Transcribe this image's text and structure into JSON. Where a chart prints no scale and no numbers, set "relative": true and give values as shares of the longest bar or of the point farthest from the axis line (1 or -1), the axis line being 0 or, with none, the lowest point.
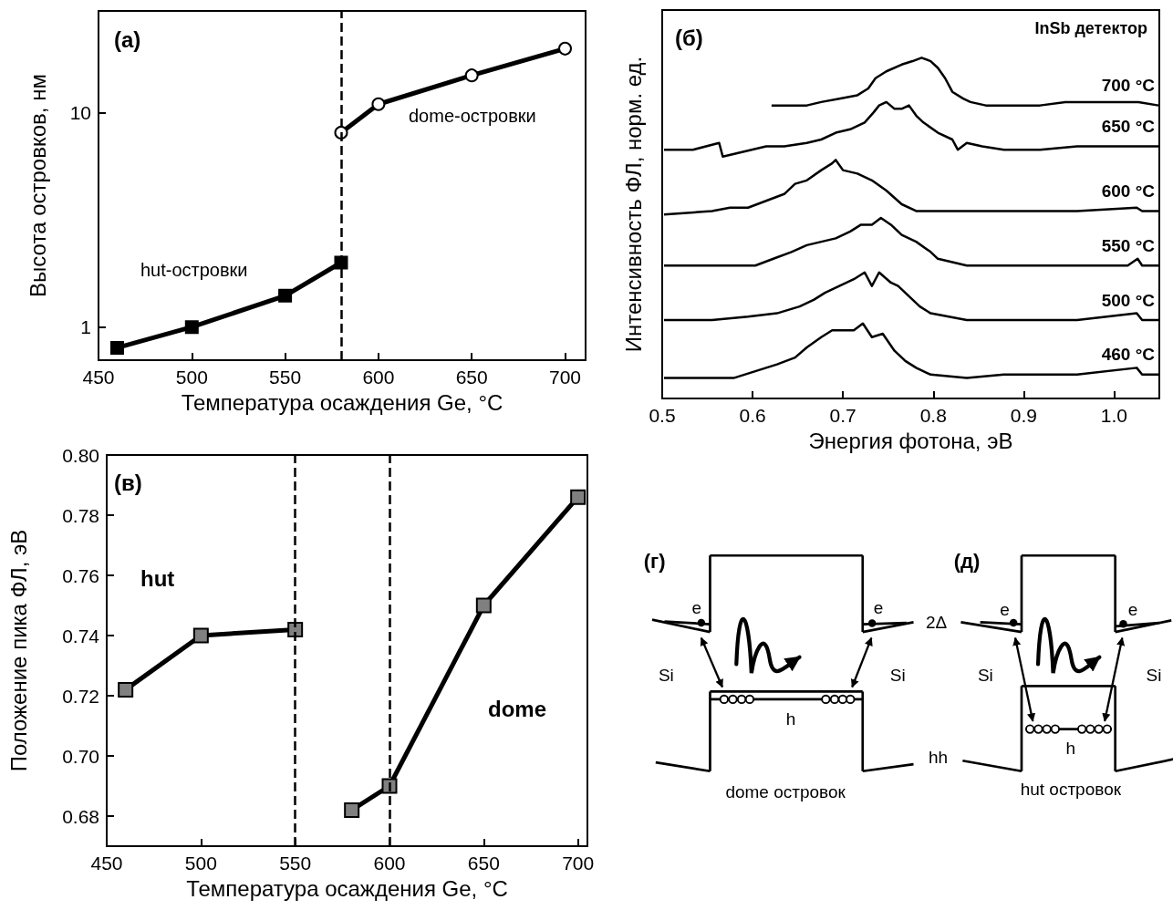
{
  "chart_data": [
    {
      "type": "line",
      "xlabel": "Температура осаждения Ge, °C",
      "ylabel": "Высота островков, нм",
      "xlim": [
        450,
        711
      ],
      "xticks": [
        450,
        500,
        550,
        600,
        650,
        700
      ],
      "ylim": [
        0.7,
        30
      ],
      "yticks": [
        1,
        10
      ],
      "log": "y",
      "annotations": [
        "(a)",
        "hut-островки",
        "dome-островки"
      ],
      "ref_lines": [
        {
          "axis": "x",
          "value": 580,
          "line_style": "dashed",
          "color": "#000000"
        }
      ],
      "series": [
        {
          "x": [
            460,
            500,
            550,
            580
          ],
          "values": [
            0.8,
            1.0,
            1.4,
            2.0
          ],
          "color": "#000000",
          "marker": "square"
        },
        {
          "x": [
            580,
            600,
            650,
            700
          ],
          "values": [
            8.1,
            11,
            15,
            20
          ],
          "color": "#000000",
          "marker": "circle"
        }
      ]
    },
    {
      "type": "line",
      "relative": true,
      "xlabel": "Энергия фотона, эВ",
      "ylabel": "Интенсивность ФЛ, норм. ед.",
      "xlim": [
        0.5,
        1.05
      ],
      "xticks": [
        0.5,
        0.6,
        0.7,
        0.8,
        0.9,
        {
          "value": 1.0,
          "label": "1.0"
        }
      ],
      "marker": "none",
      "annotations": [
        "(б)",
        "InSb детектор"
      ],
      "series": [
        {
          "name": "700 °C",
          "color": "#000000",
          "x": [
            0.621,
            0.643,
            0.66,
            0.676,
            0.696,
            0.716,
            0.728,
            0.736,
            0.748,
            0.765,
            0.777,
            0.787,
            0.797,
            0.805,
            0.813,
            0.821,
            0.833,
            0.841,
            0.858,
            0.878,
            0.898,
            0.918,
            0.946,
            0.979,
            1.007,
            1.027,
            1.049
          ],
          "values": [
            0.86,
            0.86,
            0.86,
            0.87,
            0.88,
            0.89,
            0.91,
            0.94,
            0.96,
            0.98,
            0.99,
            1.0,
            0.99,
            0.97,
            0.94,
            0.9,
            0.88,
            0.87,
            0.86,
            0.86,
            0.86,
            0.86,
            0.87,
            0.87,
            0.87,
            0.87,
            0.86
          ]
        },
        {
          "name": "650 °C",
          "color": "#000000",
          "x": [
            0.502,
            0.534,
            0.563,
            0.567,
            0.583,
            0.615,
            0.635,
            0.66,
            0.676,
            0.692,
            0.708,
            0.724,
            0.734,
            0.74,
            0.748,
            0.757,
            0.765,
            0.773,
            0.781,
            0.789,
            0.805,
            0.821,
            0.827,
            0.837,
            0.854,
            0.878,
            0.918,
            0.959,
            0.999,
            1.049
          ],
          "values": [
            0.73,
            0.73,
            0.75,
            0.71,
            0.72,
            0.74,
            0.74,
            0.75,
            0.76,
            0.78,
            0.79,
            0.81,
            0.84,
            0.86,
            0.87,
            0.85,
            0.85,
            0.86,
            0.83,
            0.81,
            0.78,
            0.76,
            0.73,
            0.75,
            0.74,
            0.73,
            0.73,
            0.74,
            0.74,
            0.74
          ]
        },
        {
          "name": "600 °C",
          "color": "#000000",
          "x": [
            0.502,
            0.555,
            0.575,
            0.595,
            0.615,
            0.635,
            0.647,
            0.66,
            0.676,
            0.688,
            0.692,
            0.7,
            0.716,
            0.732,
            0.748,
            0.765,
            0.781,
            0.797,
            0.837,
            0.878,
            0.918,
            0.959,
            1.025,
            1.031,
            1.049
          ],
          "values": [
            0.54,
            0.55,
            0.56,
            0.56,
            0.58,
            0.6,
            0.63,
            0.64,
            0.67,
            0.69,
            0.7,
            0.67,
            0.66,
            0.64,
            0.61,
            0.57,
            0.55,
            0.55,
            0.55,
            0.55,
            0.55,
            0.55,
            0.56,
            0.55,
            0.55
          ]
        },
        {
          "name": "550 °C",
          "color": "#000000",
          "x": [
            0.502,
            0.555,
            0.603,
            0.623,
            0.643,
            0.66,
            0.676,
            0.692,
            0.708,
            0.72,
            0.732,
            0.742,
            0.753,
            0.765,
            0.781,
            0.797,
            0.805,
            0.821,
            0.837,
            0.878,
            0.918,
            0.959,
            1.015,
            1.026,
            1.031,
            1.049
          ],
          "values": [
            0.39,
            0.39,
            0.39,
            0.41,
            0.43,
            0.45,
            0.46,
            0.47,
            0.49,
            0.51,
            0.51,
            0.53,
            0.51,
            0.48,
            0.46,
            0.43,
            0.41,
            0.4,
            0.39,
            0.39,
            0.39,
            0.39,
            0.39,
            0.41,
            0.39,
            0.39
          ]
        },
        {
          "name": "500 °C",
          "color": "#000000",
          "x": [
            0.502,
            0.555,
            0.595,
            0.627,
            0.652,
            0.668,
            0.68,
            0.696,
            0.712,
            0.724,
            0.732,
            0.74,
            0.753,
            0.761,
            0.773,
            0.785,
            0.797,
            0.817,
            0.837,
            0.878,
            0.918,
            0.959,
            1.025,
            1.031,
            1.049
          ],
          "values": [
            0.23,
            0.23,
            0.24,
            0.25,
            0.27,
            0.29,
            0.31,
            0.33,
            0.35,
            0.37,
            0.33,
            0.37,
            0.34,
            0.33,
            0.3,
            0.27,
            0.25,
            0.24,
            0.23,
            0.23,
            0.23,
            0.23,
            0.25,
            0.23,
            0.23
          ]
        },
        {
          "name": "460 °C",
          "color": "#000000",
          "x": [
            0.502,
            0.555,
            0.579,
            0.603,
            0.627,
            0.647,
            0.66,
            0.676,
            0.688,
            0.7,
            0.712,
            0.722,
            0.732,
            0.744,
            0.757,
            0.769,
            0.781,
            0.797,
            0.837,
            0.878,
            0.918,
            0.959,
            1.025,
            1.031,
            1.049
          ],
          "values": [
            0.06,
            0.06,
            0.06,
            0.08,
            0.1,
            0.12,
            0.15,
            0.18,
            0.2,
            0.2,
            0.2,
            0.22,
            0.18,
            0.19,
            0.14,
            0.11,
            0.09,
            0.07,
            0.06,
            0.07,
            0.07,
            0.07,
            0.09,
            0.07,
            0.07
          ]
        }
      ]
    },
    {
      "type": "line",
      "xlabel": "Температура осаждения Ge, °C",
      "ylabel": "Положение пика ФЛ, эВ",
      "xlim": [
        450,
        705
      ],
      "xticks": [
        450,
        500,
        550,
        600,
        650,
        700
      ],
      "ylim": [
        0.67,
        0.8
      ],
      "yticks": [
        0.68,
        {
          "value": 0.7,
          "label": "0.70"
        },
        0.72,
        0.74,
        0.76,
        0.78,
        {
          "value": 0.8,
          "label": "0.80"
        }
      ],
      "marker": "square",
      "annotations": [
        "(в)",
        "hut",
        "dome"
      ],
      "ref_lines": [
        {
          "axis": "x",
          "value": 550,
          "line_style": "dashed",
          "color": "#000000"
        },
        {
          "axis": "x",
          "value": 600,
          "line_style": "dashed",
          "color": "#000000"
        }
      ],
      "series": [
        {
          "x": [
            460,
            500,
            550
          ],
          "values": [
            0.722,
            0.74,
            0.742
          ],
          "color": "#808080"
        },
        {
          "x": [
            580,
            600,
            650,
            700
          ],
          "values": [
            0.682,
            0.69,
            0.75,
            0.786
          ],
          "color": "#808080"
        }
      ]
    },
    {
      "type": "other",
      "annotations": [
        "(г)",
        "e",
        "e",
        "2Δ",
        "Si",
        "Si",
        "h",
        "hh",
        "dome островок",
        "(д)",
        "e",
        "e",
        "Si",
        "Si",
        "h",
        "hut островок"
      ]
    }
  ]
}
